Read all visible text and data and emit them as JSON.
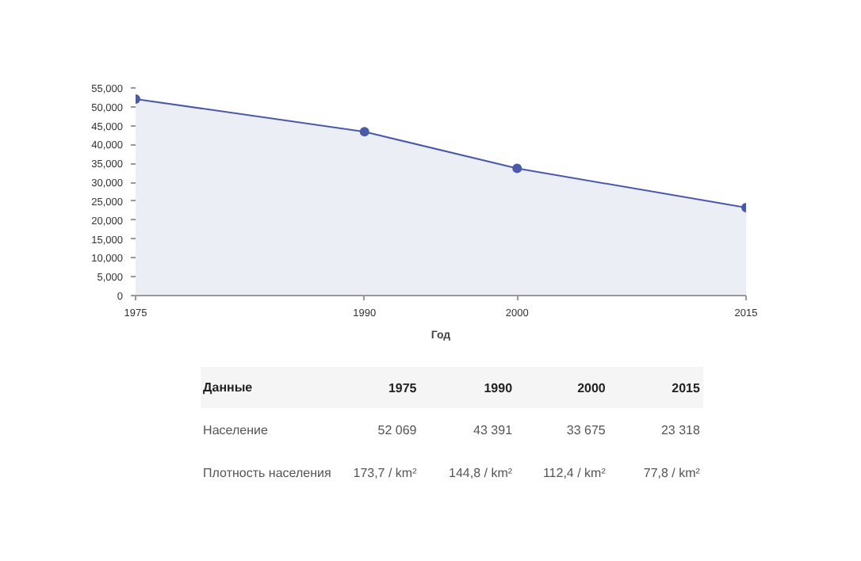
{
  "chart_data": {
    "type": "area",
    "xlabel": "Год",
    "x": [
      1975,
      1990,
      2000,
      2015
    ],
    "series": [
      {
        "color": "#4a5aa8",
        "values": [
          52069,
          43391,
          33675,
          23318
        ]
      }
    ],
    "xlim": [
      1975,
      2015
    ],
    "xticks": [
      1975,
      1990,
      2000,
      2015
    ],
    "ylim": [
      0,
      55000
    ],
    "yticks": [
      0,
      {
        "value": 5000,
        "label": "5,000"
      },
      {
        "value": 10000,
        "label": "10,000"
      },
      {
        "value": 15000,
        "label": "15,000"
      },
      {
        "value": 20000,
        "label": "20,000"
      },
      {
        "value": 25000,
        "label": "25,000"
      },
      {
        "value": 30000,
        "label": "30,000"
      },
      {
        "value": 35000,
        "label": "35,000"
      },
      {
        "value": 40000,
        "label": "40,000"
      },
      {
        "value": 45000,
        "label": "45,000"
      },
      {
        "value": 50000,
        "label": "50,000"
      },
      {
        "value": 55000,
        "label": "55,000"
      }
    ],
    "marker": "circle",
    "grid": false,
    "annotations": [
      "Данные",
      "1975",
      "1990",
      "2000",
      "2015",
      "Население",
      "52 069",
      "43 391",
      "33 675",
      "23 318",
      "Плотность населения",
      "173,7 / km²",
      "144,8 / km²",
      "112,4 / km²",
      "77,8 / km²"
    ]
  }
}
